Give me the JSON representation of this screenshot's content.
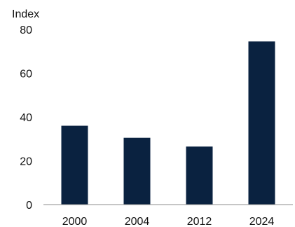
{
  "chart_data": {
    "type": "bar",
    "unit_label": "Index",
    "categories": [
      "2000",
      "2004",
      "2012",
      "2024"
    ],
    "values": [
      36,
      30.5,
      26.5,
      74.5
    ],
    "ylim": [
      0,
      80
    ],
    "yticks": [
      "0",
      "20",
      "40",
      "60",
      "80"
    ],
    "grid": false,
    "legend": "none",
    "colors": {
      "bar": "#0a2240",
      "axis": "#8c8c8c",
      "text": "#111111"
    }
  }
}
